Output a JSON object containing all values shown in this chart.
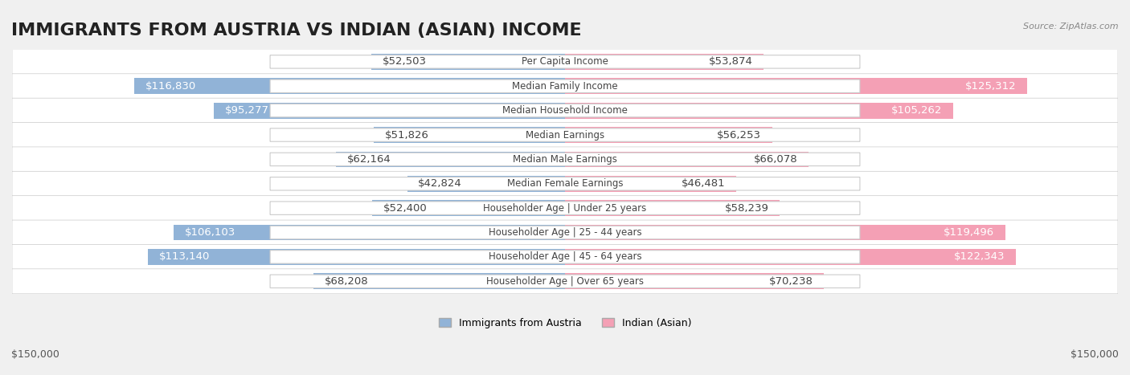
{
  "title": "IMMIGRANTS FROM AUSTRIA VS INDIAN (ASIAN) INCOME",
  "source": "Source: ZipAtlas.com",
  "categories": [
    "Per Capita Income",
    "Median Family Income",
    "Median Household Income",
    "Median Earnings",
    "Median Male Earnings",
    "Median Female Earnings",
    "Householder Age | Under 25 years",
    "Householder Age | 25 - 44 years",
    "Householder Age | 45 - 64 years",
    "Householder Age | Over 65 years"
  ],
  "austria_values": [
    52503,
    116830,
    95277,
    51826,
    62164,
    42824,
    52400,
    106103,
    113140,
    68208
  ],
  "indian_values": [
    53874,
    125312,
    105262,
    56253,
    66078,
    46481,
    58239,
    119496,
    122343,
    70238
  ],
  "austria_labels": [
    "$52,503",
    "$116,830",
    "$95,277",
    "$51,826",
    "$62,164",
    "$42,824",
    "$52,400",
    "$106,103",
    "$113,140",
    "$68,208"
  ],
  "indian_labels": [
    "$53,874",
    "$125,312",
    "$105,262",
    "$56,253",
    "$66,078",
    "$46,481",
    "$58,239",
    "$119,496",
    "$122,343",
    "$70,238"
  ],
  "austria_color": "#91b3d7",
  "indian_color": "#f4a0b5",
  "austria_color_dark": "#6a9ec4",
  "indian_color_dark": "#e87fa0",
  "austria_label_color_threshold": 80000,
  "max_value": 150000,
  "xlabel": "$150,000",
  "xlabel_right": "$150,000",
  "legend_austria": "Immigrants from Austria",
  "legend_indian": "Indian (Asian)",
  "background_color": "#f0f0f0",
  "row_bg_color": "#ffffff",
  "title_fontsize": 16,
  "label_fontsize": 9.5
}
